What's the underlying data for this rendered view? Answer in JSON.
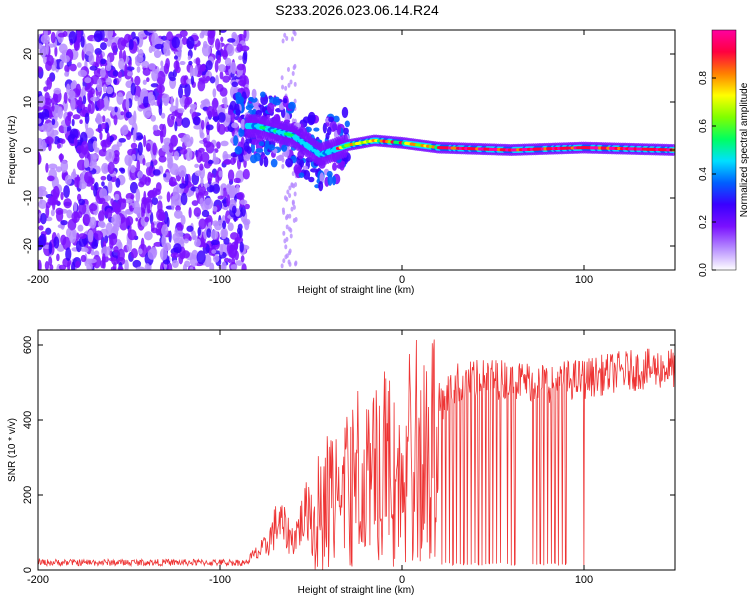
{
  "title": "S233.2026.023.06.14.R24",
  "chart_data": [
    {
      "type": "heatmap",
      "name": "spectrogram",
      "xlabel": "Height of straight line (km)",
      "ylabel": "Frequency (Hz)",
      "xlim": [
        -200,
        150
      ],
      "ylim": [
        -25,
        25
      ],
      "xticks": [
        -200,
        -100,
        0,
        100
      ],
      "yticks": [
        -20,
        -10,
        0,
        10,
        20
      ],
      "colorbar": {
        "label": "Normalized spectral amplitude",
        "range": [
          0,
          1
        ],
        "ticks": [
          "0.0",
          "0.2",
          "0.4",
          "0.6",
          "0.8"
        ],
        "colors": [
          "#ffffff",
          "#b68cff",
          "#7a10ff",
          "#3a00ff",
          "#0060ff",
          "#00e0ff",
          "#00ff60",
          "#80ff00",
          "#ffff00",
          "#ff8000",
          "#ff0040",
          "#ff00a0"
        ]
      },
      "ridge": {
        "description_points": [
          {
            "x": -80,
            "y": 5
          },
          {
            "x": -60,
            "y": 3
          },
          {
            "x": -45,
            "y": -1
          },
          {
            "x": -30,
            "y": 1
          },
          {
            "x": -15,
            "y": 2
          },
          {
            "x": 0,
            "y": 1.5
          },
          {
            "x": 20,
            "y": 0.5
          },
          {
            "x": 60,
            "y": 0
          },
          {
            "x": 100,
            "y": 0.5
          },
          {
            "x": 150,
            "y": 0
          }
        ]
      }
    },
    {
      "type": "line",
      "name": "snr",
      "xlabel": "Height of straight line (km)",
      "ylabel": "SNR (10 * v/v)",
      "xlim": [
        -200,
        150
      ],
      "ylim": [
        0,
        640
      ],
      "xticks": [
        -200,
        -100,
        0,
        100
      ],
      "yticks": [
        0,
        200,
        400,
        600
      ],
      "color": "#ee3333",
      "envelope": [
        {
          "x": -200,
          "y": 20
        },
        {
          "x": -100,
          "y": 22
        },
        {
          "x": -85,
          "y": 25
        },
        {
          "x": -75,
          "y": 60
        },
        {
          "x": -68,
          "y": 130
        },
        {
          "x": -60,
          "y": 80
        },
        {
          "x": -50,
          "y": 180
        },
        {
          "x": -40,
          "y": 250
        },
        {
          "x": -30,
          "y": 300
        },
        {
          "x": -20,
          "y": 340
        },
        {
          "x": -10,
          "y": 370
        },
        {
          "x": 0,
          "y": 390
        },
        {
          "x": 10,
          "y": 400
        },
        {
          "x": 18,
          "y": 430
        },
        {
          "x": 30,
          "y": 500
        },
        {
          "x": 50,
          "y": 510
        },
        {
          "x": 80,
          "y": 500
        },
        {
          "x": 100,
          "y": 510
        },
        {
          "x": 120,
          "y": 530
        },
        {
          "x": 150,
          "y": 540
        }
      ],
      "dropouts": [
        22,
        24,
        26,
        28,
        30,
        32,
        34,
        36,
        38,
        40,
        42,
        44,
        46,
        48,
        50,
        52,
        54,
        58,
        60,
        62,
        72,
        74,
        76,
        78,
        80,
        82,
        84,
        86,
        88,
        90,
        100
      ]
    }
  ]
}
